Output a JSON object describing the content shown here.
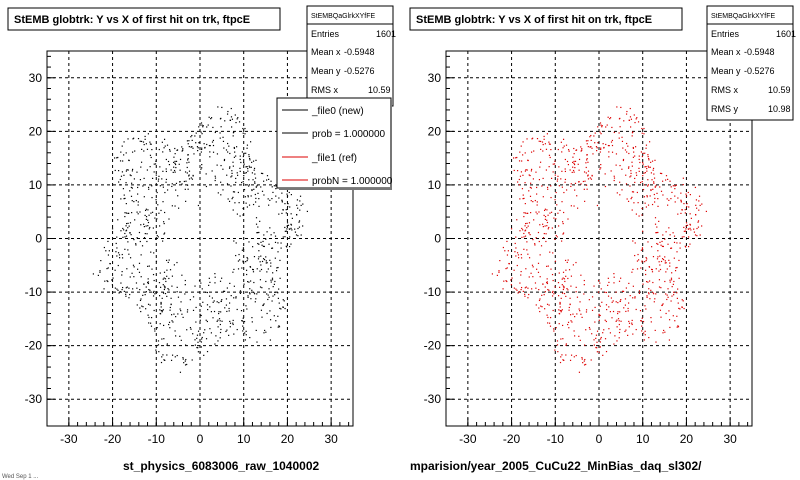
{
  "left_panel": {
    "title": "StEMB globtrk: Y vs X of first hit on trk, ftpcE",
    "stats": {
      "header": "StEMBQaGlrkXYfFE",
      "rows": [
        {
          "label": "Entries",
          "value": "1601"
        },
        {
          "label": "Mean x",
          "value": "-0.5948"
        },
        {
          "label": "Mean y",
          "value": "-0.5276"
        },
        {
          "label": "RMS x",
          "value": "10.59"
        }
      ]
    },
    "legend": [
      {
        "label": "_file0 (new)",
        "color": "#000000"
      },
      {
        "label": "prob = 1.000000",
        "color": "#000000"
      },
      {
        "label": "_file1 (ref)",
        "color": "#dd0000"
      },
      {
        "label": "probN = 1.000000",
        "color": "#dd0000"
      }
    ],
    "footer": "st_physics_6083006_raw_1040002",
    "corner_text": "Wed Sep 1 ..."
  },
  "right_panel": {
    "title": "StEMB globtrk: Y vs X of first hit on trk, ftpcE",
    "stats": {
      "header": "StEMBQaGlrkXYfFE",
      "rows": [
        {
          "label": "Entries",
          "value": "1601"
        },
        {
          "label": "Mean x",
          "value": "-0.5948"
        },
        {
          "label": "Mean y",
          "value": "-0.5276"
        },
        {
          "label": "RMS x",
          "value": "10.59"
        },
        {
          "label": "RMS y",
          "value": "10.98"
        }
      ]
    },
    "footer": "mparision/year_2005_CuCu22_MinBias_daq_sl302/"
  },
  "chart_data": [
    {
      "type": "scatter",
      "title": "StEMB globtrk: Y vs X of first hit on trk, ftpcE",
      "xlim": [
        -35,
        35
      ],
      "ylim": [
        -35,
        35
      ],
      "xticks": [
        -30,
        -20,
        -10,
        0,
        10,
        20,
        30
      ],
      "yticks": [
        -30,
        -20,
        -10,
        0,
        10,
        20,
        30
      ],
      "grid": true,
      "series": [
        {
          "name": "_file0 (new)",
          "color": "#000000",
          "distribution": {
            "shape": "ring",
            "r_inner": 7,
            "r_outer": 22,
            "entries": 1601
          }
        }
      ]
    },
    {
      "type": "scatter",
      "title": "StEMB globtrk: Y vs X of first hit on trk, ftpcE",
      "xlim": [
        -35,
        35
      ],
      "ylim": [
        -35,
        35
      ],
      "xticks": [
        -30,
        -20,
        -10,
        0,
        10,
        20,
        30
      ],
      "yticks": [
        -30,
        -20,
        -10,
        0,
        10,
        20,
        30
      ],
      "grid": true,
      "series": [
        {
          "name": "_file1 (ref)",
          "color": "#dd0000",
          "distribution": {
            "shape": "ring",
            "r_inner": 7,
            "r_outer": 22,
            "entries": 1601
          }
        }
      ]
    }
  ]
}
